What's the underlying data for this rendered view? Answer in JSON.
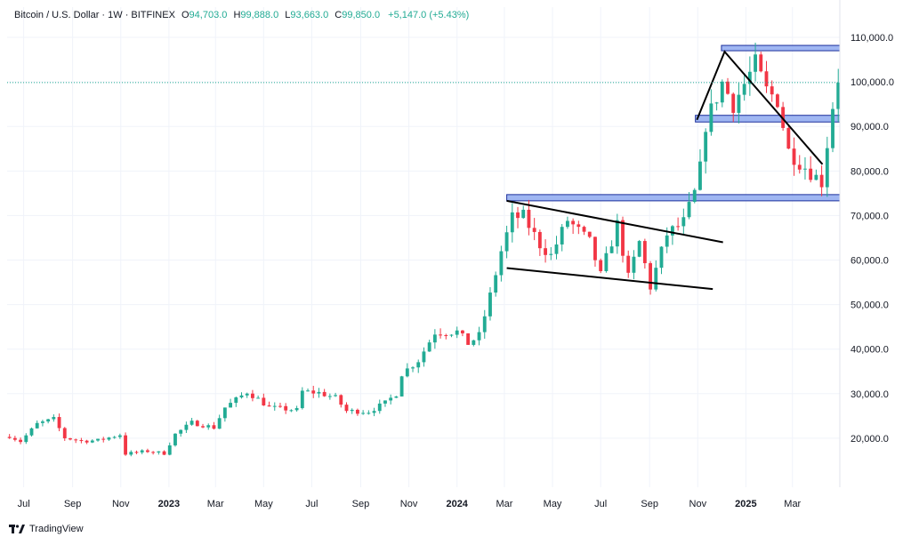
{
  "header": {
    "symbol": "Bitcoin / U.S. Dollar · 1W · BITFINEX",
    "open_label": "O",
    "open": "94,703.0",
    "high_label": "H",
    "high": "99,888.0",
    "low_label": "L",
    "low": "93,663.0",
    "close_label": "C",
    "close": "99,850.0",
    "change": "+5,147.0 (+5.43%)"
  },
  "brand": {
    "name": "TradingView"
  },
  "colors": {
    "up": "#22ab94",
    "down": "#f23645",
    "grid": "#f0f3fa",
    "zone_fill": "#8ea9f0",
    "zone_stroke": "#1c2f9c",
    "trendline": "#000000",
    "price_line": "#22ab94"
  },
  "chart_data": {
    "type": "candlestick",
    "title": "Bitcoin / U.S. Dollar · 1W · BITFINEX",
    "y_ticks": [
      20000,
      30000,
      40000,
      50000,
      60000,
      70000,
      80000,
      90000,
      100000,
      110000
    ],
    "y_tick_labels": [
      "20,000.0",
      "30,000.0",
      "40,000.0",
      "50,000.0",
      "60,000.0",
      "70,000.0",
      "80,000.0",
      "90,000.0",
      "100,000.0",
      "110,000.0"
    ],
    "ylim": [
      9000,
      114000
    ],
    "x_ticks": [
      {
        "label": "Jul",
        "date": "2022-07-01",
        "year": false
      },
      {
        "label": "Sep",
        "date": "2022-09-01",
        "year": false
      },
      {
        "label": "Nov",
        "date": "2022-11-01",
        "year": false
      },
      {
        "label": "2023",
        "date": "2023-01-01",
        "year": true
      },
      {
        "label": "Mar",
        "date": "2023-03-01",
        "year": false
      },
      {
        "label": "May",
        "date": "2023-05-01",
        "year": false
      },
      {
        "label": "Jul",
        "date": "2023-07-01",
        "year": false
      },
      {
        "label": "Sep",
        "date": "2023-09-01",
        "year": false
      },
      {
        "label": "Nov",
        "date": "2023-11-01",
        "year": false
      },
      {
        "label": "2024",
        "date": "2024-01-01",
        "year": true
      },
      {
        "label": "Mar",
        "date": "2024-03-01",
        "year": false
      },
      {
        "label": "May",
        "date": "2024-05-01",
        "year": false
      },
      {
        "label": "Jul",
        "date": "2024-07-01",
        "year": false
      },
      {
        "label": "Sep",
        "date": "2024-09-01",
        "year": false
      },
      {
        "label": "Nov",
        "date": "2024-11-01",
        "year": false
      },
      {
        "label": "2025",
        "date": "2025-01-01",
        "year": true
      },
      {
        "label": "Mar",
        "date": "2025-03-01",
        "year": false
      }
    ],
    "xlim": [
      "2022-06-10",
      "2025-04-30"
    ],
    "last_price": 99850,
    "close_path": [
      [
        "2022-06-13",
        20500
      ],
      [
        "2022-06-27",
        19300
      ],
      [
        "2022-07-18",
        23200
      ],
      [
        "2022-08-08",
        24300
      ],
      [
        "2022-08-22",
        20100
      ],
      [
        "2022-09-12",
        19400
      ],
      [
        "2022-10-03",
        19500
      ],
      [
        "2022-10-31",
        20800
      ],
      [
        "2022-11-07",
        16500
      ],
      [
        "2022-12-05",
        17100
      ],
      [
        "2022-12-26",
        16600
      ],
      [
        "2023-01-09",
        20900
      ],
      [
        "2023-01-30",
        23500
      ],
      [
        "2023-02-27",
        22400
      ],
      [
        "2023-03-13",
        26900
      ],
      [
        "2023-04-10",
        30400
      ],
      [
        "2023-04-24",
        28800
      ],
      [
        "2023-05-08",
        26900
      ],
      [
        "2023-06-12",
        26300
      ],
      [
        "2023-06-19",
        30500
      ],
      [
        "2023-07-10",
        30200
      ],
      [
        "2023-07-31",
        29100
      ],
      [
        "2023-08-14",
        26100
      ],
      [
        "2023-09-11",
        26000
      ],
      [
        "2023-10-02",
        27900
      ],
      [
        "2023-10-16",
        30000
      ],
      [
        "2023-10-23",
        34500
      ],
      [
        "2023-11-13",
        37500
      ],
      [
        "2023-12-04",
        43800
      ],
      [
        "2024-01-01",
        43900
      ],
      [
        "2024-01-15",
        41300
      ],
      [
        "2024-01-29",
        43000
      ],
      [
        "2024-02-12",
        52000
      ],
      [
        "2024-02-26",
        62000
      ],
      [
        "2024-03-11",
        69500
      ],
      [
        "2024-03-25",
        69800
      ],
      [
        "2024-04-15",
        63500
      ],
      [
        "2024-04-29",
        61000
      ],
      [
        "2024-05-20",
        69000
      ],
      [
        "2024-06-17",
        64000
      ],
      [
        "2024-07-01",
        56500
      ],
      [
        "2024-07-22",
        68000
      ],
      [
        "2024-08-05",
        56000
      ],
      [
        "2024-08-19",
        64000
      ],
      [
        "2024-09-02",
        54000
      ],
      [
        "2024-09-23",
        65800
      ],
      [
        "2024-10-14",
        68500
      ],
      [
        "2024-10-28",
        75000
      ],
      [
        "2024-11-04",
        80500
      ],
      [
        "2024-11-11",
        90500
      ],
      [
        "2024-12-02",
        99800
      ],
      [
        "2024-12-16",
        95000
      ],
      [
        "2025-01-13",
        104000
      ],
      [
        "2025-01-27",
        98000
      ],
      [
        "2025-02-10",
        96000
      ],
      [
        "2025-02-24",
        84500
      ],
      [
        "2025-03-10",
        82000
      ],
      [
        "2025-04-07",
        77500
      ],
      [
        "2025-04-21",
        94700
      ],
      [
        "2025-04-28",
        99850
      ]
    ],
    "zones": [
      {
        "from": "2024-12-01",
        "to": "2025-04-30",
        "low": 107000,
        "high": 108200
      },
      {
        "from": "2024-10-29",
        "to": "2025-04-30",
        "low": 91000,
        "high": 92500
      },
      {
        "from": "2024-03-04",
        "to": "2025-04-30",
        "low": 73300,
        "high": 74700
      }
    ],
    "trendlines": [
      {
        "points": [
          [
            "2024-03-04",
            73300
          ],
          [
            "2024-12-03",
            64000
          ]
        ]
      },
      {
        "points": [
          [
            "2024-03-04",
            58200
          ],
          [
            "2024-11-20",
            53500
          ]
        ]
      },
      {
        "points": [
          [
            "2024-10-31",
            91500
          ],
          [
            "2024-12-05",
            106800
          ],
          [
            "2025-04-08",
            81500
          ]
        ]
      }
    ]
  }
}
